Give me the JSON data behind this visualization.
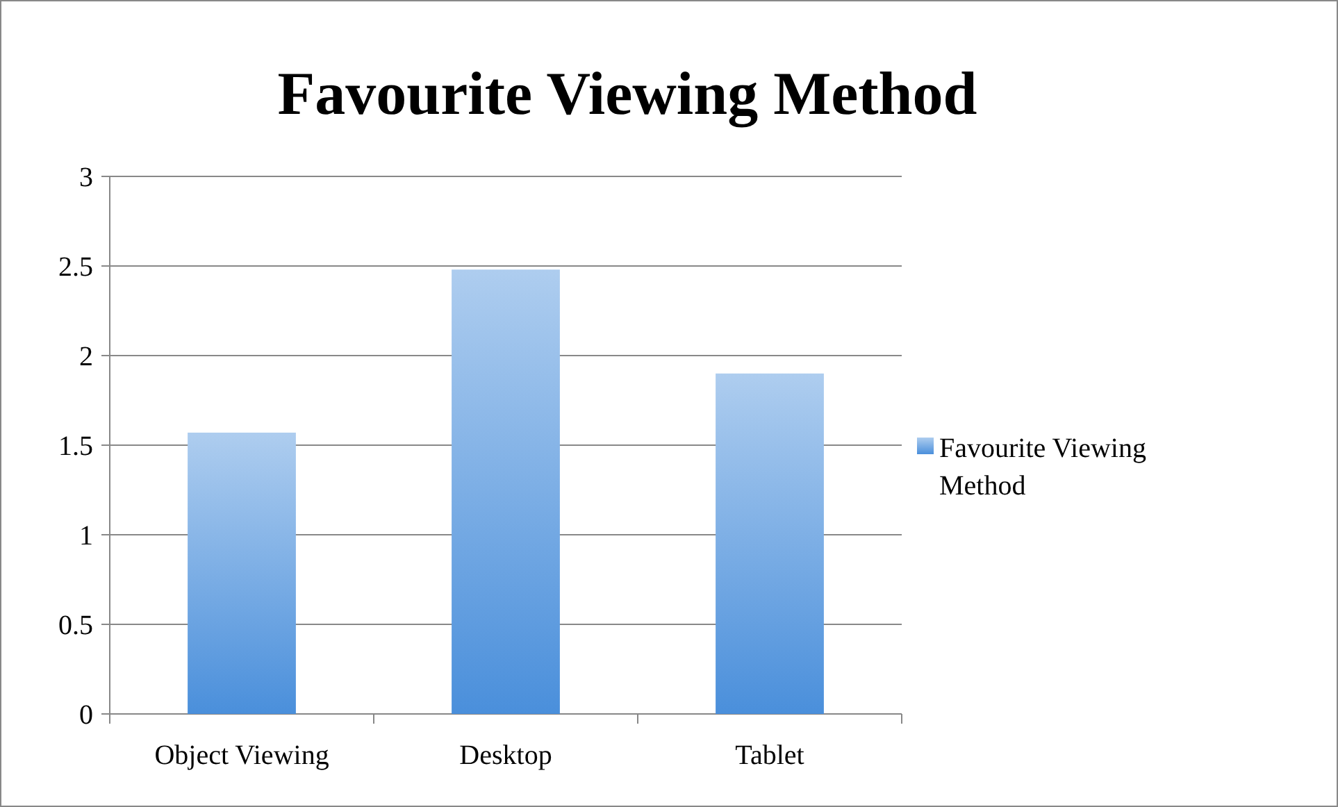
{
  "chart_data": {
    "type": "bar",
    "title": "Favourite Viewing Method",
    "categories": [
      "Object Viewing",
      "Desktop",
      "Tablet"
    ],
    "series": [
      {
        "name": "Favourite Viewing Method",
        "color": "#4a8fdb",
        "values": [
          1.57,
          2.48,
          1.9
        ]
      }
    ],
    "ylim": [
      0,
      3
    ],
    "yticks": [
      0,
      0.5,
      1,
      1.5,
      2,
      2.5,
      3
    ],
    "grid": "y",
    "legend": "right"
  }
}
